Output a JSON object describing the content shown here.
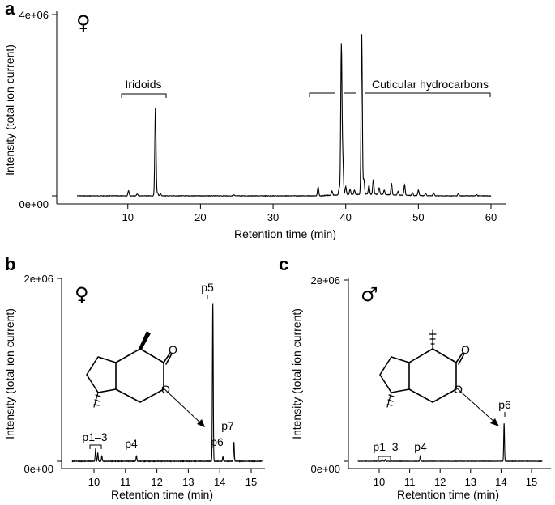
{
  "chart_data": [
    {
      "panel": "a",
      "type": "line",
      "sex_symbol": "♀",
      "xlabel": "Retention time (min)",
      "ylabel": "Intensity (total ion current)",
      "xlim": [
        2,
        62
      ],
      "ylim": [
        0,
        4000000
      ],
      "x_ticks": [
        "10",
        "20",
        "30",
        "40",
        "50",
        "60"
      ],
      "y_ticks": [
        "0e+00",
        "4e+06"
      ],
      "annotations": [
        "Iridoids",
        "Cuticular hydrocarbons"
      ],
      "peaks": [
        {
          "x": 10.1,
          "y": 120000
        },
        {
          "x": 11.3,
          "y": 40000
        },
        {
          "x": 13.8,
          "y": 1950000
        },
        {
          "x": 14.1,
          "y": 60000
        },
        {
          "x": 14.5,
          "y": 50000
        },
        {
          "x": 24.6,
          "y": 20000
        },
        {
          "x": 36.2,
          "y": 200000
        },
        {
          "x": 38.1,
          "y": 100000
        },
        {
          "x": 39.1,
          "y": 150000
        },
        {
          "x": 39.4,
          "y": 3300000
        },
        {
          "x": 39.6,
          "y": 780000
        },
        {
          "x": 40.0,
          "y": 180000
        },
        {
          "x": 40.6,
          "y": 120000
        },
        {
          "x": 41.2,
          "y": 100000
        },
        {
          "x": 42.2,
          "y": 3550000
        },
        {
          "x": 42.5,
          "y": 330000
        },
        {
          "x": 43.2,
          "y": 200000
        },
        {
          "x": 43.8,
          "y": 330000
        },
        {
          "x": 44.6,
          "y": 150000
        },
        {
          "x": 45.3,
          "y": 100000
        },
        {
          "x": 46.3,
          "y": 250000
        },
        {
          "x": 47.2,
          "y": 80000
        },
        {
          "x": 48.1,
          "y": 230000
        },
        {
          "x": 49.2,
          "y": 60000
        },
        {
          "x": 50.0,
          "y": 120000
        },
        {
          "x": 51.0,
          "y": 50000
        },
        {
          "x": 52.1,
          "y": 70000
        },
        {
          "x": 55.5,
          "y": 50000
        },
        {
          "x": 58.0,
          "y": 30000
        }
      ]
    },
    {
      "panel": "b",
      "type": "line",
      "sex_symbol": "♀",
      "xlabel": "Retention time (min)",
      "ylabel": "Intensity (total ion current)",
      "xlim": [
        9.05,
        15.6
      ],
      "ylim": [
        0,
        2000000
      ],
      "x_ticks": [
        "10",
        "11",
        "12",
        "13",
        "14",
        "15"
      ],
      "y_ticks": [
        "0e+00",
        "2e+06"
      ],
      "peak_labels": [
        "p1–3",
        "p4",
        "p5",
        "p6",
        "p7"
      ],
      "peaks": [
        {
          "x": 10.05,
          "y": 130000
        },
        {
          "x": 10.12,
          "y": 90000
        },
        {
          "x": 10.25,
          "y": 60000
        },
        {
          "x": 11.35,
          "y": 60000
        },
        {
          "x": 13.78,
          "y": 1730000
        },
        {
          "x": 14.1,
          "y": 50000
        },
        {
          "x": 14.45,
          "y": 210000
        }
      ]
    },
    {
      "panel": "c",
      "type": "line",
      "sex_symbol": "♂",
      "xlabel": "Retention time (min)",
      "ylabel": "Intensity (total ion current)",
      "xlim": [
        9.05,
        15.6
      ],
      "ylim": [
        0,
        2000000
      ],
      "x_ticks": [
        "10",
        "11",
        "12",
        "13",
        "14",
        "15"
      ],
      "y_ticks": [
        "0e+00",
        "2e+06"
      ],
      "peak_labels": [
        "p1–3",
        "p4",
        "p6"
      ],
      "peaks": [
        {
          "x": 10.1,
          "y": 20000
        },
        {
          "x": 10.2,
          "y": 20000
        },
        {
          "x": 11.35,
          "y": 60000
        },
        {
          "x": 14.1,
          "y": 420000
        }
      ]
    }
  ]
}
